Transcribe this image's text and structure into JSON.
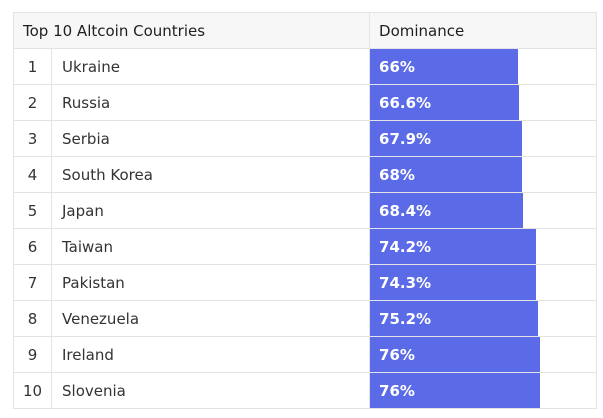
{
  "chart_data": {
    "type": "table",
    "title": "",
    "columns": [
      "Top 10 Altcoin Countries",
      "Dominance"
    ],
    "rows": [
      {
        "rank": "1",
        "country": "Ukraine",
        "value": 66,
        "label": "66%"
      },
      {
        "rank": "2",
        "country": "Russia",
        "value": 66.6,
        "label": "66.6%"
      },
      {
        "rank": "3",
        "country": "Serbia",
        "value": 67.9,
        "label": "67.9%"
      },
      {
        "rank": "4",
        "country": "South Korea",
        "value": 68,
        "label": "68%"
      },
      {
        "rank": "5",
        "country": "Japan",
        "value": 68.4,
        "label": "68.4%"
      },
      {
        "rank": "6",
        "country": "Taiwan",
        "value": 74.2,
        "label": "74.2%"
      },
      {
        "rank": "7",
        "country": "Pakistan",
        "value": 74.3,
        "label": "74.3%"
      },
      {
        "rank": "8",
        "country": "Venezuela",
        "value": 75.2,
        "label": "75.2%"
      },
      {
        "rank": "9",
        "country": "Ireland",
        "value": 76,
        "label": "76%"
      },
      {
        "rank": "10",
        "country": "Slovenia",
        "value": 76,
        "label": "76%"
      }
    ],
    "bar_color": "#5b6ae6",
    "value_range": [
      0,
      100
    ]
  }
}
